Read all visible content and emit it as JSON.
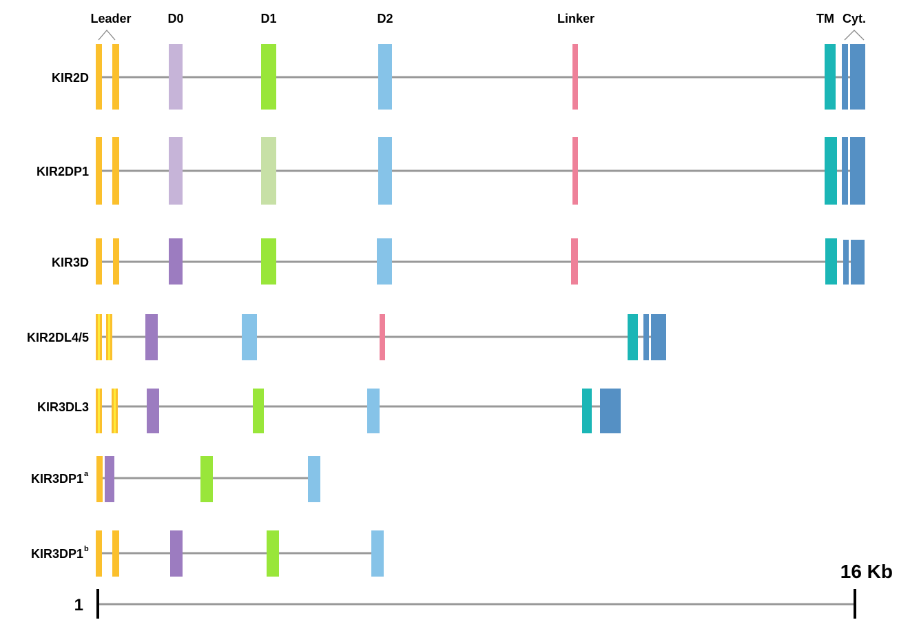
{
  "domains": {
    "leader": "Leader",
    "d0": "D0",
    "d1": "D1",
    "d2": "D2",
    "linker": "Linker",
    "tm": "TM",
    "cyt": "Cyt."
  },
  "colors": {
    "leader": "#FBC02D",
    "leader_alt": "#FFEB3B",
    "d0": "#9C7CC0",
    "d0_light": "#C6B4D8",
    "d1": "#99E63A",
    "d1_light": "#C7E0A6",
    "d2": "#86C3E8",
    "linker": "#EE8199",
    "tm": "#1BB6B6",
    "cyt": "#5590C4",
    "line": "#999999"
  },
  "rows": [
    {
      "key": "kir2d",
      "label": "KIR2D",
      "sup": ""
    },
    {
      "key": "kir2dp1",
      "label": "KIR2DP1",
      "sup": ""
    },
    {
      "key": "kir3d",
      "label": "KIR3D",
      "sup": ""
    },
    {
      "key": "kir2dl45",
      "label": "KIR2DL4/5",
      "sup": ""
    },
    {
      "key": "kir3dl3",
      "label": "KIR3DL3",
      "sup": ""
    },
    {
      "key": "kir3dp1a",
      "label": "KIR3DP1",
      "sup": "a"
    },
    {
      "key": "kir3dp1b",
      "label": "KIR3DP1",
      "sup": "b"
    }
  ],
  "scale": {
    "start_label": "1",
    "end_label": "16 Kb"
  }
}
